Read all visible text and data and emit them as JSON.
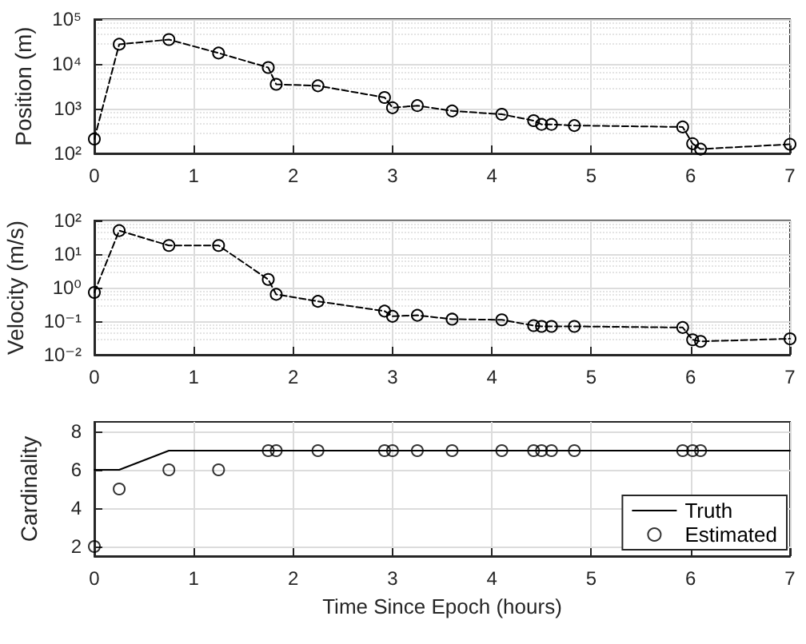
{
  "chart_data": [
    {
      "type": "line",
      "ylabel": "Position (m)",
      "log": "y",
      "grid": true,
      "marker": "circle",
      "line_style": "dashed",
      "x": [
        0,
        0.25,
        0.75,
        1.25,
        1.75,
        1.83,
        2.25,
        2.92,
        3.0,
        3.25,
        3.6,
        4.1,
        4.42,
        4.5,
        4.6,
        4.83,
        5.92,
        6.02,
        6.1,
        7.0
      ],
      "series": [
        {
          "color": "#000000",
          "values": [
            210,
            27500,
            35000,
            17500,
            8300,
            3500,
            3250,
            1780,
            1050,
            1170,
            890,
            750,
            540,
            445,
            445,
            420,
            390,
            165,
            125,
            160
          ]
        }
      ],
      "xlim": [
        0,
        7
      ],
      "xticks": [
        0,
        1,
        2,
        3,
        4,
        5,
        6,
        7
      ],
      "ylim": [
        100,
        100000
      ],
      "yticks": [
        {
          "value": 100,
          "label": "10²"
        },
        {
          "value": 1000,
          "label": "10³"
        },
        {
          "value": 10000,
          "label": "10⁴"
        },
        {
          "value": 100000,
          "label": "10⁵"
        }
      ]
    },
    {
      "type": "line",
      "ylabel": "Velocity (m/s)",
      "log": "y",
      "grid": true,
      "marker": "circle",
      "line_style": "dashed",
      "x": [
        0,
        0.25,
        0.75,
        1.25,
        1.75,
        1.83,
        2.25,
        2.92,
        3.0,
        3.25,
        3.6,
        4.1,
        4.42,
        4.5,
        4.6,
        4.83,
        5.92,
        6.02,
        6.1,
        7.0
      ],
      "series": [
        {
          "color": "#000000",
          "values": [
            0.72,
            50,
            18,
            18,
            1.75,
            0.63,
            0.39,
            0.2,
            0.14,
            0.15,
            0.115,
            0.11,
            0.074,
            0.07,
            0.07,
            0.07,
            0.065,
            0.028,
            0.025,
            0.03
          ]
        }
      ],
      "xlim": [
        0,
        7
      ],
      "xticks": [
        0,
        1,
        2,
        3,
        4,
        5,
        6,
        7
      ],
      "ylim": [
        0.01,
        100
      ],
      "yticks": [
        {
          "value": 0.01,
          "label": "10⁻²"
        },
        {
          "value": 0.1,
          "label": "10⁻¹"
        },
        {
          "value": 1,
          "label": "10⁰"
        },
        {
          "value": 10,
          "label": "10¹"
        },
        {
          "value": 100,
          "label": "10²"
        }
      ]
    },
    {
      "type": "line",
      "ylabel": "Cardinality",
      "xlabel": "Time Since Epoch (hours)",
      "grid": true,
      "line_style": "solid",
      "legend": "bottom right",
      "x": [
        0,
        0.25,
        0.75,
        1.25,
        1.75,
        1.83,
        2.25,
        2.92,
        3.0,
        3.25,
        3.6,
        4.1,
        4.42,
        4.5,
        4.6,
        4.83,
        5.92,
        6.02,
        6.1
      ],
      "series": [
        {
          "name": "Truth",
          "marker": "none",
          "color": "#000000",
          "x": [
            0,
            0.25,
            0.75,
            7
          ],
          "values": [
            6,
            6,
            7,
            7
          ]
        },
        {
          "name": "Estimated",
          "type": "scatter",
          "marker": "circle",
          "color": "#000000",
          "values": [
            2,
            5,
            6,
            6,
            7,
            7,
            7,
            7,
            7,
            7,
            7,
            7,
            7,
            7,
            7,
            7,
            7,
            7,
            7
          ]
        }
      ],
      "xlim": [
        0,
        7
      ],
      "xticks": [
        0,
        1,
        2,
        3,
        4,
        5,
        6,
        7
      ],
      "ylim": [
        1.5,
        8.5
      ],
      "yticks": [
        2,
        4,
        6,
        8
      ]
    }
  ]
}
